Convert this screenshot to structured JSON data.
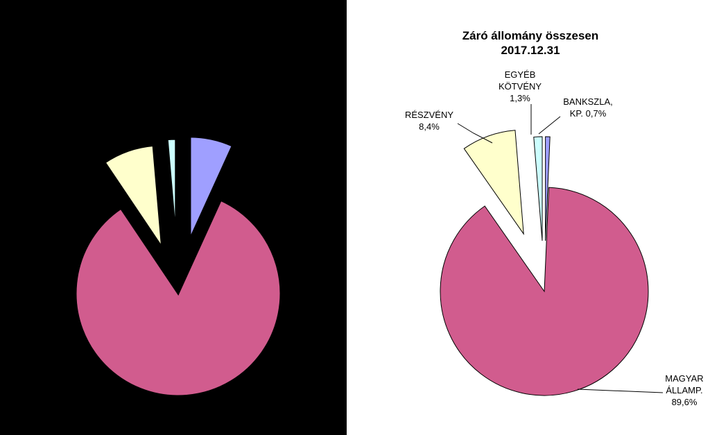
{
  "chart_data": [
    {
      "type": "pie",
      "title": "",
      "background": "#000000",
      "exploded": true,
      "slices": [
        {
          "label": "",
          "value": 6.5,
          "color": "#9f9fff",
          "order": 0
        },
        {
          "label": "",
          "value": 80.0,
          "color": "#d15c8e",
          "order": 1
        },
        {
          "label": "",
          "value": 7.7,
          "color": "#ffffcc",
          "order": 2
        },
        {
          "label": "",
          "value": 1.3,
          "color": "#ccffff",
          "order": 3
        }
      ]
    },
    {
      "type": "pie",
      "title": "Záró állomány összesen",
      "subtitle": "2017.12.31",
      "background": "#ffffff",
      "exploded": true,
      "slices": [
        {
          "label_lines": [
            "BANKSZLA,",
            "KP. 0,7%"
          ],
          "value": 0.7,
          "color": "#9f9fff"
        },
        {
          "label_lines": [
            "MAGYAR",
            "ÁLLAMP.",
            "89,6%"
          ],
          "value": 89.6,
          "color": "#d15c8e"
        },
        {
          "label_lines": [
            "RÉSZVÉNY",
            "8,4%"
          ],
          "value": 8.4,
          "color": "#ffffcc"
        },
        {
          "label_lines": [
            "EGYÉB",
            "KÖTVÉNY",
            "1,3%"
          ],
          "value": 1.3,
          "color": "#ccffff"
        }
      ]
    }
  ]
}
